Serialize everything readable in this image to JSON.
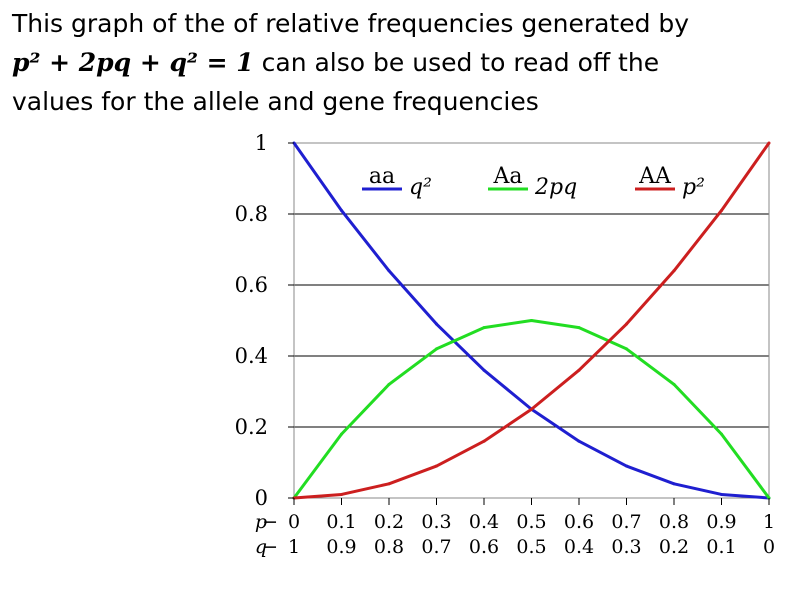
{
  "caption": {
    "line1": "This graph of the of relative frequencies generated by",
    "equation": "p² + 2pq + q² = 1",
    "line2_rest": " can also be used to read off the",
    "line3": "values for the allele and gene frequencies"
  },
  "chart_data": {
    "type": "line",
    "x": [
      0,
      0.1,
      0.2,
      0.3,
      0.4,
      0.5,
      0.6,
      0.7,
      0.8,
      0.9,
      1
    ],
    "xlim": [
      0,
      1
    ],
    "ylim": [
      0,
      1
    ],
    "y_ticks": [
      "0",
      "0.2",
      "0.4",
      "0.6",
      "0.8",
      "1"
    ],
    "y_tick_values": [
      0,
      0.2,
      0.4,
      0.6,
      0.8,
      1
    ],
    "p_label": "p",
    "q_label": "q",
    "p_ticks": [
      "0",
      "0.1",
      "0.2",
      "0.3",
      "0.4",
      "0.5",
      "0.6",
      "0.7",
      "0.8",
      "0.9",
      "1"
    ],
    "q_ticks": [
      "1",
      "0.9",
      "0.8",
      "0.7",
      "0.6",
      "0.5",
      "0.4",
      "0.3",
      "0.2",
      "0.1",
      "0"
    ],
    "grid": "horizontal",
    "legend_position": "top",
    "series": [
      {
        "name": "aa",
        "expression": "q²",
        "color": "#1f1fd0",
        "values": [
          1,
          0.81,
          0.64,
          0.49,
          0.36,
          0.25,
          0.16,
          0.09,
          0.04,
          0.01,
          0
        ]
      },
      {
        "name": "Aa",
        "expression": "2pq",
        "color": "#22dd22",
        "values": [
          0,
          0.18,
          0.32,
          0.42,
          0.48,
          0.5,
          0.48,
          0.42,
          0.32,
          0.18,
          0
        ]
      },
      {
        "name": "AA",
        "expression": "p²",
        "color": "#cc1f1f",
        "values": [
          0,
          0.01,
          0.04,
          0.09,
          0.16,
          0.25,
          0.36,
          0.49,
          0.64,
          0.81,
          1
        ]
      }
    ]
  }
}
